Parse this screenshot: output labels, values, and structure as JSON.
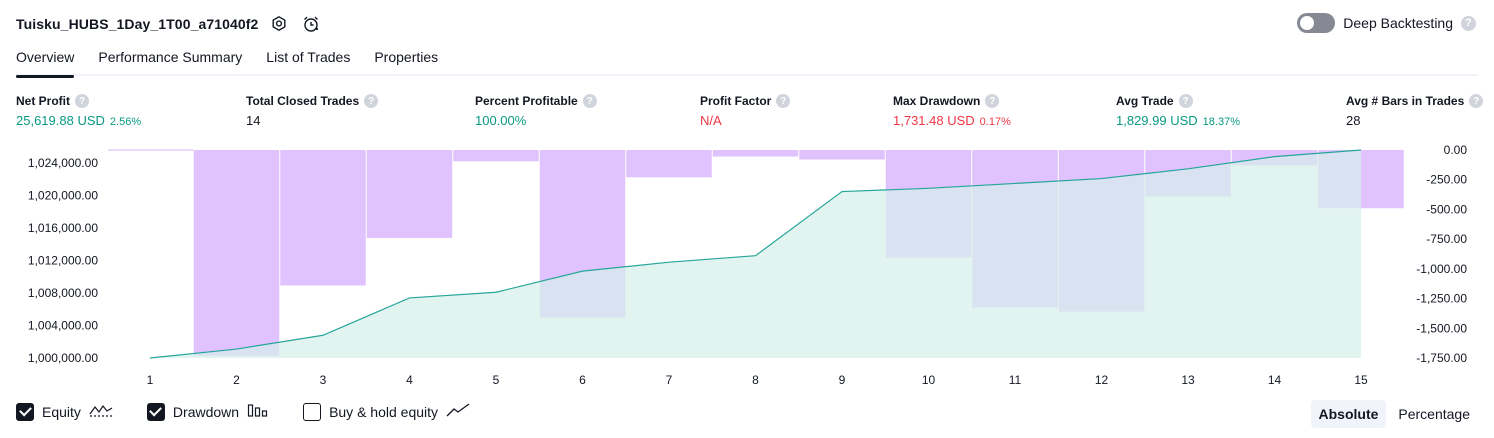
{
  "header": {
    "strategy_name": "Tuisku_HUBS_1Day_1T00_a71040f2",
    "deep_backtesting_label": "Deep Backtesting",
    "help_glyph": "?"
  },
  "tabs": [
    {
      "label": "Overview",
      "active": true
    },
    {
      "label": "Performance Summary",
      "active": false
    },
    {
      "label": "List of Trades",
      "active": false
    },
    {
      "label": "Properties",
      "active": false
    }
  ],
  "metrics": [
    {
      "label": "Net Profit",
      "value": "25,619.88 USD",
      "pct": "2.56%",
      "color": "green"
    },
    {
      "label": "Total Closed Trades",
      "value": "14",
      "pct": "",
      "color": "dark"
    },
    {
      "label": "Percent Profitable",
      "value": "100.00%",
      "pct": "",
      "color": "green"
    },
    {
      "label": "Profit Factor",
      "value": "N/A",
      "pct": "",
      "color": "red"
    },
    {
      "label": "Max Drawdown",
      "value": "1,731.48 USD",
      "pct": "0.17%",
      "color": "red"
    },
    {
      "label": "Avg Trade",
      "value": "1,829.99 USD",
      "pct": "18.37%",
      "color": "green"
    },
    {
      "label": "Avg # Bars in Trades",
      "value": "28",
      "pct": "",
      "color": "dark"
    }
  ],
  "chart_data": {
    "type": "line",
    "x": [
      1,
      2,
      3,
      4,
      5,
      6,
      7,
      8,
      9,
      10,
      11,
      12,
      13,
      14,
      15
    ],
    "x_tick_labels": [
      "1",
      "2",
      "3",
      "4",
      "5",
      "6",
      "7",
      "8",
      "9",
      "10",
      "11",
      "12",
      "13",
      "14",
      "15"
    ],
    "left_axis": {
      "ylim": [
        1000000,
        1025619.88
      ],
      "ticks": [
        1000000,
        1004000,
        1008000,
        1012000,
        1016000,
        1020000,
        1024000
      ],
      "tick_labels": [
        "1,000,000.00",
        "1,004,000.00",
        "1,008,000.00",
        "1,012,000.00",
        "1,016,000.00",
        "1,020,000.00",
        "1,024,000.00"
      ]
    },
    "right_axis": {
      "ylim": [
        -1750,
        0
      ],
      "ticks": [
        0,
        -250,
        -500,
        -750,
        -1000,
        -1250,
        -1500,
        -1750
      ],
      "tick_labels": [
        "0.00",
        "-250.00",
        "-500.00",
        "-750.00",
        "-1,000.00",
        "-1,250.00",
        "-1,500.00",
        "-1,750.00"
      ]
    },
    "series": [
      {
        "name": "Equity",
        "kind": "area-line",
        "axis": "left",
        "color": "#26a69a",
        "fill": "#d6f0ea",
        "values": [
          1000000,
          1001100,
          1002800,
          1007400,
          1008100,
          1010700,
          1011800,
          1012600,
          1020500,
          1020900,
          1021500,
          1022100,
          1023300,
          1024800,
          1025619.88
        ]
      },
      {
        "name": "Drawdown",
        "kind": "bar",
        "axis": "right",
        "color": "#d8b4fe",
        "x": [
          2,
          3,
          4,
          5,
          6,
          7,
          8,
          9,
          10,
          11,
          12,
          13,
          14,
          15
        ],
        "values": [
          -1731.48,
          -1140,
          -740,
          -95,
          -1410,
          -230,
          -55,
          -80,
          -905,
          -1325,
          -1360,
          -390,
          -130,
          -490
        ]
      }
    ],
    "grid": false
  },
  "legend": [
    {
      "label": "Equity",
      "checked": true,
      "icon": "equity-wave-icon"
    },
    {
      "label": "Drawdown",
      "checked": true,
      "icon": "drawdown-bars-icon"
    },
    {
      "label": "Buy & hold equity",
      "checked": false,
      "icon": "buy-hold-line-icon"
    }
  ],
  "mode": {
    "absolute_label": "Absolute",
    "percentage_label": "Percentage",
    "selected": "absolute"
  }
}
